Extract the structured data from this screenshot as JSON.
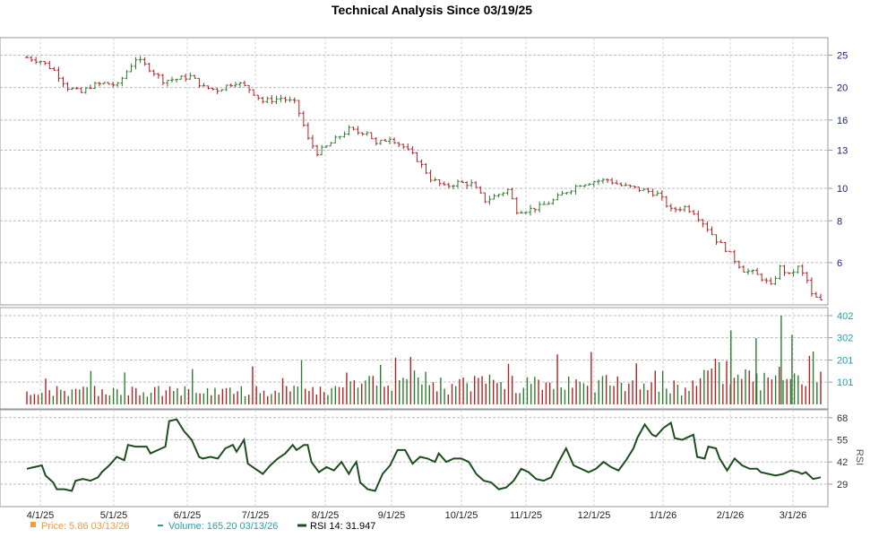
{
  "chart_data": {
    "type": "stock_ohlc_volume_rsi",
    "title": "Technical Analysis Since 03/19/25",
    "x_tick_labels": [
      "4/1/25",
      "5/1/25",
      "6/1/25",
      "7/1/25",
      "8/1/25",
      "9/1/25",
      "10/1/25",
      "11/1/25",
      "12/1/25",
      "1/1/26",
      "2/1/26",
      "3/1/26"
    ],
    "price_panel": {
      "scale": "log",
      "y_ticks": [
        "25",
        "20",
        "16",
        "13",
        "10",
        "8",
        "6"
      ],
      "ylim": [
        4.6,
        27
      ],
      "anchors": [
        [
          0,
          24.6
        ],
        [
          3,
          24.0
        ],
        [
          6,
          22.5
        ],
        [
          9,
          20.0
        ],
        [
          12,
          19.3
        ],
        [
          14,
          20.2
        ],
        [
          17,
          20.6
        ],
        [
          20,
          20.3
        ],
        [
          24,
          24.4
        ],
        [
          27,
          22.8
        ],
        [
          30,
          21.0
        ],
        [
          33,
          21.2
        ],
        [
          36,
          21.6
        ],
        [
          39,
          20.0
        ],
        [
          42,
          19.7
        ],
        [
          46,
          20.8
        ],
        [
          49,
          19.8
        ],
        [
          52,
          18.2
        ],
        [
          56,
          18.6
        ],
        [
          59,
          18.0
        ],
        [
          60,
          16.8
        ],
        [
          62,
          14.0
        ],
        [
          64,
          12.8
        ],
        [
          66,
          13.3
        ],
        [
          68,
          14.0
        ],
        [
          71,
          15.0
        ],
        [
          73,
          14.7
        ],
        [
          75,
          14.8
        ],
        [
          77,
          13.5
        ],
        [
          80,
          14.2
        ],
        [
          83,
          13.3
        ],
        [
          86,
          12.2
        ],
        [
          89,
          10.7
        ],
        [
          92,
          10.1
        ],
        [
          95,
          10.4
        ],
        [
          98,
          10.3
        ],
        [
          101,
          9.2
        ],
        [
          104,
          9.6
        ],
        [
          106,
          9.9
        ],
        [
          108,
          8.6
        ],
        [
          110,
          8.6
        ],
        [
          113,
          8.8
        ],
        [
          116,
          9.2
        ],
        [
          119,
          9.8
        ],
        [
          122,
          10.3
        ],
        [
          125,
          10.5
        ],
        [
          128,
          10.6
        ],
        [
          131,
          10.2
        ],
        [
          134,
          10.0
        ],
        [
          137,
          9.8
        ],
        [
          139,
          9.6
        ],
        [
          142,
          8.6
        ],
        [
          145,
          8.8
        ],
        [
          147,
          8.5
        ],
        [
          150,
          7.6
        ],
        [
          152,
          7.0
        ],
        [
          154,
          6.6
        ],
        [
          156,
          6.1
        ],
        [
          158,
          5.7
        ],
        [
          160,
          5.6
        ],
        [
          162,
          5.4
        ],
        [
          164,
          5.1
        ],
        [
          166,
          5.8
        ],
        [
          168,
          5.5
        ],
        [
          170,
          5.8
        ],
        [
          172,
          5.3
        ],
        [
          173,
          4.8
        ],
        [
          175,
          4.6
        ]
      ]
    },
    "volume_panel": {
      "y_ticks": [
        "402",
        "302",
        "201",
        "101"
      ],
      "ylim": [
        0,
        402
      ]
    },
    "rsi_panel": {
      "label": "RSI",
      "y_ticks": [
        "68",
        "55",
        "42",
        "29"
      ],
      "ylim": [
        20,
        70
      ],
      "anchors": [
        [
          0,
          38
        ],
        [
          2,
          39
        ],
        [
          4,
          40
        ],
        [
          5,
          34
        ],
        [
          7,
          30
        ],
        [
          8,
          26
        ],
        [
          10,
          26
        ],
        [
          12,
          25
        ],
        [
          13,
          31
        ],
        [
          15,
          32
        ],
        [
          17,
          31
        ],
        [
          19,
          33
        ],
        [
          20,
          36
        ],
        [
          22,
          40
        ],
        [
          24,
          45
        ],
        [
          26,
          43
        ],
        [
          27,
          52
        ],
        [
          29,
          51
        ],
        [
          30,
          51
        ],
        [
          32,
          51
        ],
        [
          33,
          47
        ],
        [
          35,
          49
        ],
        [
          37,
          51
        ],
        [
          38,
          66
        ],
        [
          40,
          67
        ],
        [
          42,
          60
        ],
        [
          44,
          55
        ],
        [
          46,
          45
        ],
        [
          47,
          44
        ],
        [
          49,
          45
        ],
        [
          51,
          44
        ],
        [
          53,
          50
        ],
        [
          55,
          52
        ],
        [
          56,
          48
        ],
        [
          58,
          55
        ],
        [
          59,
          41
        ],
        [
          61,
          38
        ],
        [
          63,
          35
        ],
        [
          65,
          40
        ],
        [
          67,
          44
        ],
        [
          69,
          47
        ],
        [
          71,
          52
        ],
        [
          72,
          49
        ],
        [
          74,
          52
        ],
        [
          75,
          52
        ],
        [
          76,
          42
        ],
        [
          78,
          36
        ],
        [
          80,
          39
        ],
        [
          82,
          37
        ],
        [
          84,
          42
        ],
        [
          86,
          35
        ],
        [
          87,
          39
        ],
        [
          88,
          42
        ],
        [
          89,
          30
        ],
        [
          91,
          26
        ],
        [
          93,
          25
        ],
        [
          95,
          35
        ],
        [
          97,
          40
        ],
        [
          99,
          49
        ],
        [
          101,
          49
        ],
        [
          103,
          41
        ],
        [
          105,
          45
        ],
        [
          107,
          44
        ],
        [
          109,
          42
        ],
        [
          110,
          47
        ],
        [
          112,
          42
        ],
        [
          114,
          44
        ],
        [
          116,
          44
        ],
        [
          118,
          42
        ],
        [
          120,
          35
        ],
        [
          122,
          31
        ],
        [
          124,
          30
        ],
        [
          126,
          26
        ],
        [
          128,
          27
        ],
        [
          130,
          31
        ],
        [
          132,
          38
        ],
        [
          134,
          36
        ],
        [
          136,
          32
        ],
        [
          138,
          31
        ],
        [
          140,
          33
        ],
        [
          142,
          42
        ],
        [
          144,
          50
        ],
        [
          146,
          40
        ],
        [
          148,
          38
        ],
        [
          150,
          36
        ],
        [
          152,
          38
        ],
        [
          154,
          42
        ],
        [
          156,
          39
        ],
        [
          158,
          37
        ],
        [
          160,
          43
        ],
        [
          162,
          50
        ],
        [
          163,
          56
        ],
        [
          165,
          64
        ],
        [
          167,
          58
        ],
        [
          168,
          57
        ],
        [
          170,
          62
        ],
        [
          172,
          65
        ],
        [
          173,
          56
        ],
        [
          175,
          55
        ],
        [
          177,
          57
        ],
        [
          178,
          58
        ],
        [
          179,
          45
        ],
        [
          181,
          44
        ],
        [
          182,
          51
        ],
        [
          184,
          50
        ],
        [
          185,
          44
        ],
        [
          187,
          37
        ],
        [
          189,
          44
        ],
        [
          191,
          40
        ],
        [
          193,
          38
        ],
        [
          195,
          38
        ],
        [
          196,
          36
        ],
        [
          198,
          35
        ],
        [
          200,
          34
        ],
        [
          202,
          35
        ],
        [
          204,
          37
        ],
        [
          206,
          36
        ],
        [
          207,
          35
        ],
        [
          208,
          36
        ],
        [
          210,
          32
        ],
        [
          212,
          33
        ]
      ]
    },
    "legend": [
      {
        "label": "Price: 5.86  03/13/26",
        "color": "#f39b3c"
      },
      {
        "label": "Volume: 165.20  03/13/26",
        "color": "#1fa3a8"
      },
      {
        "label": "RSI 14: 31.947",
        "color": "#1e4d1e"
      }
    ],
    "colors": {
      "up": "#2e7d2e",
      "down": "#b22222",
      "price_axis": "#1a237e",
      "volume_axis": "#1fa3a8",
      "rsi_line": "#1e4d1e",
      "grid": "#bdbdbd"
    }
  }
}
